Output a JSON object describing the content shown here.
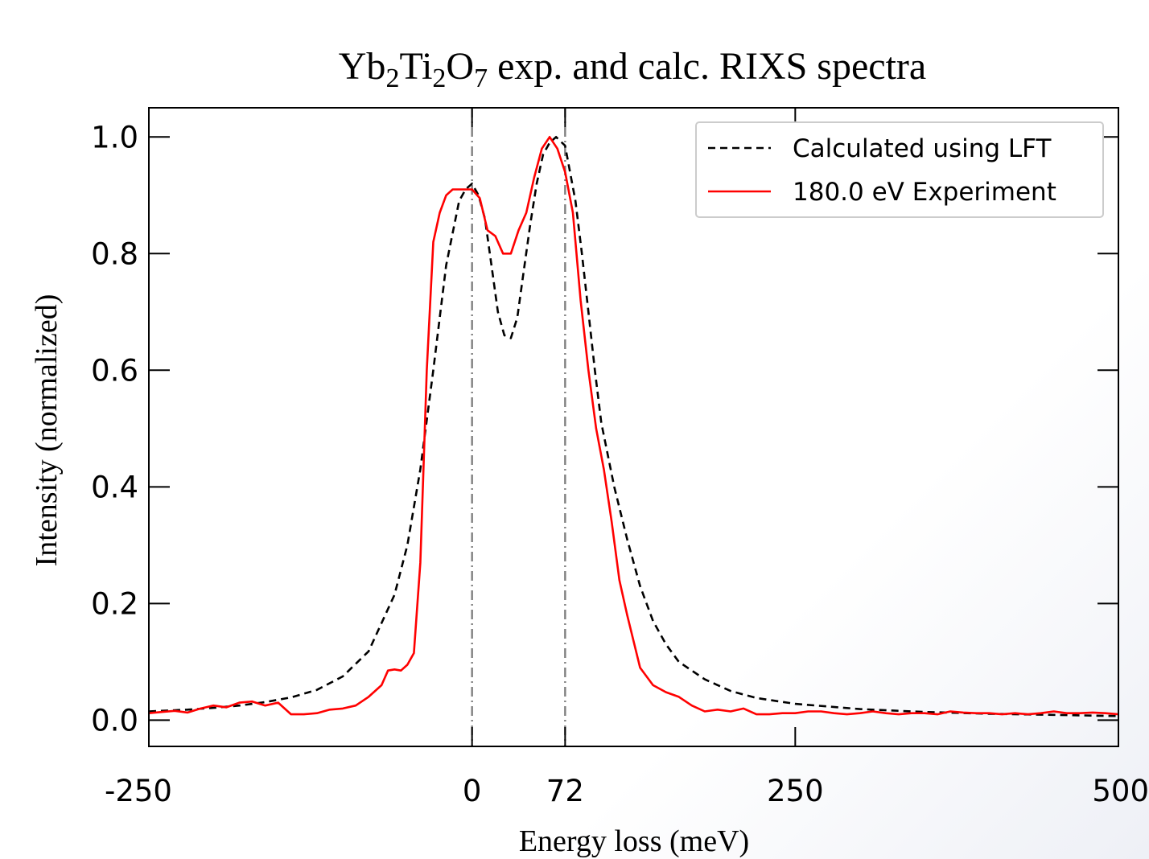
{
  "chart_data": {
    "type": "line",
    "title_parts": [
      "Yb",
      "2",
      "Ti",
      "2",
      "O",
      "7",
      " exp. and calc. RIXS spectra"
    ],
    "xlabel": "Energy loss (meV)",
    "ylabel": "Intensity (normalized)",
    "xlim": [
      -250,
      500
    ],
    "ylim": [
      -0.045,
      1.05
    ],
    "xticks": [
      -250,
      0,
      72,
      250,
      500
    ],
    "xtick_labels": [
      "-250",
      "0",
      "72",
      "250",
      "500"
    ],
    "yticks": [
      0.0,
      0.2,
      0.4,
      0.6,
      0.8,
      1.0
    ],
    "ytick_labels": [
      "0.0",
      "0.2",
      "0.4",
      "0.6",
      "0.8",
      "1.0"
    ],
    "vlines": [
      0,
      72
    ],
    "legend_position": "top-right",
    "grid": false,
    "series": [
      {
        "name": "Calculated using LFT",
        "style": "dashed",
        "color": "#000000",
        "x": [
          -250,
          -220,
          -200,
          -180,
          -160,
          -140,
          -120,
          -100,
          -80,
          -60,
          -50,
          -40,
          -30,
          -20,
          -10,
          -5,
          0,
          5,
          10,
          15,
          20,
          25,
          30,
          35,
          40,
          45,
          50,
          55,
          60,
          65,
          72,
          80,
          85,
          90,
          95,
          100,
          110,
          120,
          130,
          140,
          150,
          160,
          180,
          200,
          220,
          250,
          300,
          350,
          400,
          450,
          500
        ],
        "y": [
          0.015,
          0.018,
          0.021,
          0.025,
          0.031,
          0.039,
          0.052,
          0.075,
          0.118,
          0.215,
          0.3,
          0.43,
          0.6,
          0.78,
          0.89,
          0.91,
          0.92,
          0.9,
          0.86,
          0.78,
          0.7,
          0.66,
          0.655,
          0.69,
          0.77,
          0.85,
          0.92,
          0.97,
          0.99,
          1.0,
          0.985,
          0.89,
          0.8,
          0.7,
          0.6,
          0.51,
          0.4,
          0.31,
          0.23,
          0.17,
          0.13,
          0.1,
          0.07,
          0.05,
          0.038,
          0.028,
          0.019,
          0.014,
          0.011,
          0.009,
          0.007
        ]
      },
      {
        "name": "180.0 eV Experiment",
        "style": "solid",
        "color": "#ff0000",
        "x": [
          -250,
          -240,
          -230,
          -220,
          -210,
          -200,
          -190,
          -180,
          -170,
          -160,
          -150,
          -140,
          -130,
          -120,
          -110,
          -100,
          -90,
          -80,
          -70,
          -65,
          -60,
          -55,
          -50,
          -45,
          -40,
          -35,
          -30,
          -25,
          -20,
          -15,
          -10,
          -5,
          0,
          6,
          12,
          18,
          24,
          30,
          36,
          42,
          48,
          54,
          60,
          66,
          72,
          78,
          84,
          90,
          96,
          102,
          108,
          114,
          120,
          130,
          140,
          150,
          160,
          170,
          180,
          190,
          200,
          210,
          220,
          230,
          240,
          250,
          260,
          270,
          280,
          290,
          300,
          310,
          320,
          330,
          340,
          350,
          360,
          370,
          380,
          390,
          400,
          410,
          420,
          430,
          440,
          450,
          460,
          470,
          480,
          490,
          500
        ],
        "y": [
          0.012,
          0.014,
          0.016,
          0.013,
          0.02,
          0.025,
          0.022,
          0.03,
          0.032,
          0.025,
          0.03,
          0.01,
          0.01,
          0.012,
          0.018,
          0.02,
          0.025,
          0.04,
          0.06,
          0.085,
          0.087,
          0.085,
          0.095,
          0.115,
          0.27,
          0.6,
          0.82,
          0.87,
          0.9,
          0.91,
          0.91,
          0.91,
          0.91,
          0.895,
          0.84,
          0.83,
          0.8,
          0.8,
          0.84,
          0.87,
          0.93,
          0.98,
          1.0,
          0.98,
          0.94,
          0.87,
          0.72,
          0.6,
          0.5,
          0.43,
          0.34,
          0.24,
          0.18,
          0.09,
          0.06,
          0.048,
          0.04,
          0.025,
          0.015,
          0.018,
          0.015,
          0.02,
          0.01,
          0.01,
          0.012,
          0.012,
          0.015,
          0.015,
          0.012,
          0.01,
          0.012,
          0.015,
          0.012,
          0.01,
          0.012,
          0.012,
          0.01,
          0.015,
          0.013,
          0.012,
          0.012,
          0.01,
          0.012,
          0.01,
          0.012,
          0.015,
          0.012,
          0.012,
          0.013,
          0.012,
          0.01
        ]
      }
    ]
  }
}
